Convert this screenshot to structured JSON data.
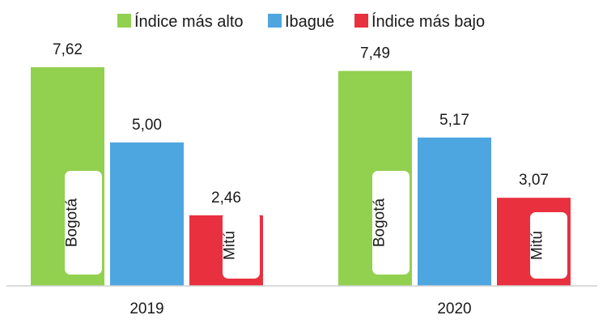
{
  "chart_data": {
    "type": "bar",
    "categories": [
      "2019",
      "2020"
    ],
    "series": [
      {
        "name": "Índice más alto",
        "color": "#92d050",
        "values": [
          7.62,
          7.49
        ],
        "display_values": [
          "7,62",
          "7,49"
        ],
        "bar_labels": [
          "Bogotá",
          "Bogotá"
        ]
      },
      {
        "name": "Ibagué",
        "color": "#4ea6e0",
        "values": [
          5.0,
          5.17
        ],
        "display_values": [
          "5,00",
          "5,17"
        ],
        "bar_labels": [
          "",
          ""
        ]
      },
      {
        "name": "Índice más bajo",
        "color": "#e8303f",
        "values": [
          2.46,
          3.07
        ],
        "display_values": [
          "2,46",
          "3,07"
        ],
        "bar_labels": [
          "Mitú",
          "Mitú"
        ]
      }
    ],
    "ylim": [
      0,
      7.62
    ],
    "legend_position": "top",
    "grid": false,
    "title": "",
    "xlabel": "",
    "ylabel": ""
  }
}
